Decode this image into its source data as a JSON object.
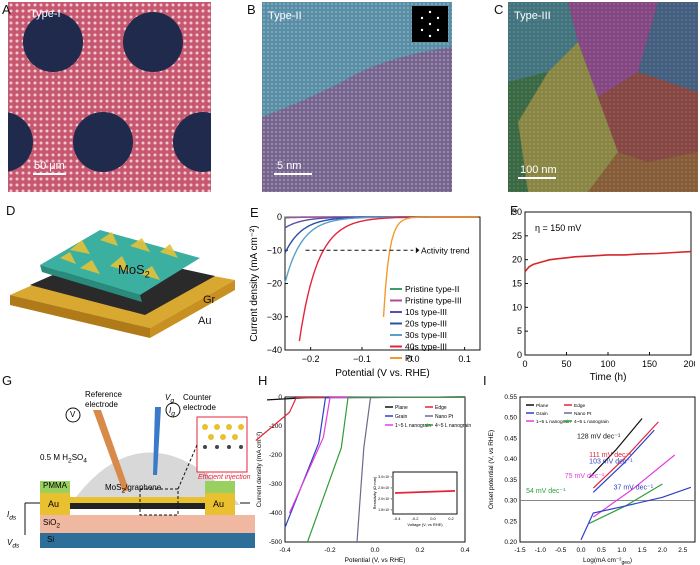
{
  "panels": {
    "A": {
      "letter": "A",
      "label": "Type-I",
      "scale": "50 μm"
    },
    "B": {
      "letter": "B",
      "label": "Type-II",
      "scale": "5 nm"
    },
    "C": {
      "letter": "C",
      "label": "Type-III",
      "scale": "100 nm"
    },
    "D": {
      "letter": "D",
      "mos2": "MoS",
      "mos2_sub": "2",
      "gr": "Gr",
      "au": "Au"
    },
    "G": {
      "letter": "G",
      "ref": "Reference\nelectrode",
      "counter": "Counter\nelectrode",
      "h2so4": "0.5 M H",
      "h2so4_sub": "2",
      "h2so4_end": "SO",
      "h2so4_sub2": "4",
      "mos2g": "MoS",
      "mos2g_sub": "2",
      "mos2g_end": "/graphene",
      "pmma": "PMMA",
      "au": "Au",
      "sio2": "SiO",
      "sio2_sub": "2",
      "si": "Si",
      "efficient": "Efficient injection",
      "vds": "V",
      "vds_sub": "ds",
      "ids": "I",
      "ids_sub": "ds",
      "vg": "V",
      "vg_sub": "g",
      "ig": "I",
      "ig_sub": "g",
      "v": "V"
    },
    "H": {
      "letter": "H"
    },
    "I": {
      "letter": "I"
    }
  },
  "chart_data": [
    {
      "id": "E",
      "type": "line",
      "title": "",
      "xlabel": "Potential (V vs. RHE)",
      "ylabel": "Current density (mA cm⁻²)",
      "xlim": [
        -0.25,
        0.13
      ],
      "ylim": [
        -40,
        0
      ],
      "xticks": [
        -0.2,
        -0.1,
        0.0,
        0.1
      ],
      "xtick_labels": [
        "−0.2",
        "−0.1",
        "0.0",
        "0.1"
      ],
      "yticks": [
        0,
        -10,
        -20,
        -30,
        -40
      ],
      "ytick_labels": [
        "0",
        "−10",
        "−20",
        "−30",
        "−40"
      ],
      "annotation": "Activity trend",
      "dashed_line_y": -10,
      "series": [
        {
          "name": "Pristine type-II",
          "color": "#3a9e6e",
          "onset": -0.3,
          "steep": 420
        },
        {
          "name": "Pristine type-III",
          "color": "#b04aa0",
          "onset": -0.26,
          "steep": 330
        },
        {
          "name": "10s type-III",
          "color": "#5a4fb0",
          "onset": -0.18,
          "steep": 300
        },
        {
          "name": "20s type-III",
          "color": "#2e4fa8",
          "onset": -0.14,
          "steep": 300
        },
        {
          "name": "30s type-III",
          "color": "#5aa0c8",
          "onset": -0.12,
          "steep": 300
        },
        {
          "name": "40s type-III",
          "color": "#e4243b",
          "onset": -0.06,
          "steep": 280
        },
        {
          "name": "Pt",
          "color": "#f29a2e",
          "onset": -0.01,
          "steep": 900
        }
      ]
    },
    {
      "id": "F",
      "type": "line",
      "title": "",
      "xlabel": "Time (h)",
      "ylabel": "Current density (mA cm⁻²)",
      "annotation": "η = 150 mV",
      "xlim": [
        0,
        200
      ],
      "ylim": [
        0,
        30
      ],
      "xticks": [
        0,
        50,
        100,
        150,
        200
      ],
      "xtick_labels": [
        "0",
        "50",
        "100",
        "150",
        "200"
      ],
      "yticks": [
        0,
        5,
        10,
        15,
        20,
        25,
        30
      ],
      "ytick_labels": [
        "0",
        "5",
        "10",
        "15",
        "20",
        "25",
        "30"
      ],
      "series": [
        {
          "name": "stability",
          "color": "#d4282b",
          "x": [
            0,
            5,
            10,
            20,
            30,
            40,
            50,
            60,
            80,
            100,
            120,
            140,
            160,
            180,
            200
          ],
          "y": [
            17.5,
            18.5,
            19.0,
            19.5,
            20.0,
            20.2,
            20.4,
            20.6,
            20.8,
            21.0,
            21.0,
            21.2,
            21.3,
            21.5,
            21.7
          ]
        }
      ]
    },
    {
      "id": "H",
      "type": "line",
      "title": "",
      "xlabel": "Potential (V, vs RHE)",
      "ylabel": "Current density (mA cm⁻²)",
      "xlim": [
        -0.4,
        0.4
      ],
      "ylim": [
        -500,
        0
      ],
      "xticks": [
        -0.4,
        -0.2,
        0.0,
        0.2,
        0.4
      ],
      "xtick_labels": [
        "-0.4",
        "-0.2",
        "0.0",
        "0.2",
        "0.4"
      ],
      "yticks": [
        0,
        -100,
        -200,
        -300,
        -400,
        -500
      ],
      "ytick_labels": [
        "0",
        "-100",
        "-200",
        "-300",
        "-400",
        "-500"
      ],
      "legend": [
        "Plane",
        "Edge",
        "Grain",
        "Nano Pt",
        "1~5 L nanograin",
        "4~5 L nanograin"
      ],
      "series": [
        {
          "name": "Plane",
          "color": "#111111",
          "x0": -0.3,
          "x1": 0.4
        },
        {
          "name": "Edge",
          "color": "#e4243b",
          "x0": -0.32,
          "x1": 0.4
        },
        {
          "name": "Grain",
          "color": "#2e3fc8",
          "x0": -0.3,
          "x1": 0.4
        },
        {
          "name": "Nano Pt",
          "color": "#6a6a8a",
          "x0": -0.1,
          "x1": 0.4
        },
        {
          "name": "1~5 L nanograin",
          "color": "#e23de0",
          "x0": -0.35,
          "x1": 0.4
        },
        {
          "name": "4~5 L nanograin",
          "color": "#2e9e3a",
          "x0": -0.35,
          "x1": 0.4
        }
      ],
      "inset": {
        "xlabel": "Voltage (V, vs RHE)",
        "ylabel": "Resistivity (Ω·mm)",
        "xtick_labels": [
          "-0.4",
          "-0.2",
          "0.0",
          "0.2"
        ],
        "ytick_labels": [
          "3.0×10⁻²",
          "2.5×10⁻²",
          "2.0×10⁻²",
          "1.5×10⁻²"
        ]
      }
    },
    {
      "id": "I",
      "type": "line",
      "title": "",
      "xlabel": "Log(mA cm⁻²",
      "xlabel_sub": "geo",
      "xlabel_end": ")",
      "ylabel": "Onset potential (V, vs RHE)",
      "xlim": [
        -1.5,
        2.8
      ],
      "ylim": [
        0.2,
        0.55
      ],
      "xticks": [
        -1.5,
        -1.0,
        -0.5,
        0.0,
        0.5,
        1.0,
        1.5,
        2.0,
        2.5
      ],
      "xtick_labels": [
        "-1.5",
        "-1.0",
        "-0.5",
        "0.0",
        "0.5",
        "1.0",
        "1.5",
        "2.0",
        "2.5"
      ],
      "yticks": [
        0.2,
        0.25,
        0.3,
        0.35,
        0.4,
        0.45,
        0.5,
        0.55
      ],
      "ytick_labels": [
        "0.20",
        "0.25",
        "0.30",
        "0.35",
        "0.40",
        "0.45",
        "0.50",
        "0.55"
      ],
      "hline": 0.3,
      "legend": [
        "Plane",
        "Edge",
        "Grain",
        "Nano Pt",
        "1~5 L nanograin",
        "4~5 L nanograin"
      ],
      "tafel_labels": [
        "128 mV dec⁻¹",
        "111 mV dec⁻¹",
        "103 mV dec⁻¹",
        "75 mV dec⁻¹",
        "54 mV dec⁻¹",
        "37 mV dec⁻¹"
      ],
      "series": [
        {
          "name": "Plane",
          "color": "#111111",
          "x": [
            0.2,
            1.5
          ],
          "y": [
            0.355,
            0.498
          ]
        },
        {
          "name": "Edge",
          "color": "#e4243b",
          "x": [
            0.3,
            1.9
          ],
          "y": [
            0.33,
            0.49
          ]
        },
        {
          "name": "Grain",
          "color": "#2e3fc8",
          "x": [
            0.3,
            1.8
          ],
          "y": [
            0.32,
            0.47
          ]
        },
        {
          "name": "1~5 L nanograin",
          "color": "#e23de0",
          "x": [
            0.3,
            2.3
          ],
          "y": [
            0.26,
            0.41
          ]
        },
        {
          "name": "4~5 L nanograin",
          "color": "#2e9e3a",
          "x": [
            0.2,
            2.0
          ],
          "y": [
            0.245,
            0.34
          ]
        },
        {
          "name": "Nano Pt",
          "color": "#2e3fc8",
          "x": [
            0.0,
            0.3,
            1.0,
            2.0,
            2.7
          ],
          "y": [
            0.205,
            0.27,
            0.285,
            0.308,
            0.332
          ]
        }
      ]
    }
  ]
}
